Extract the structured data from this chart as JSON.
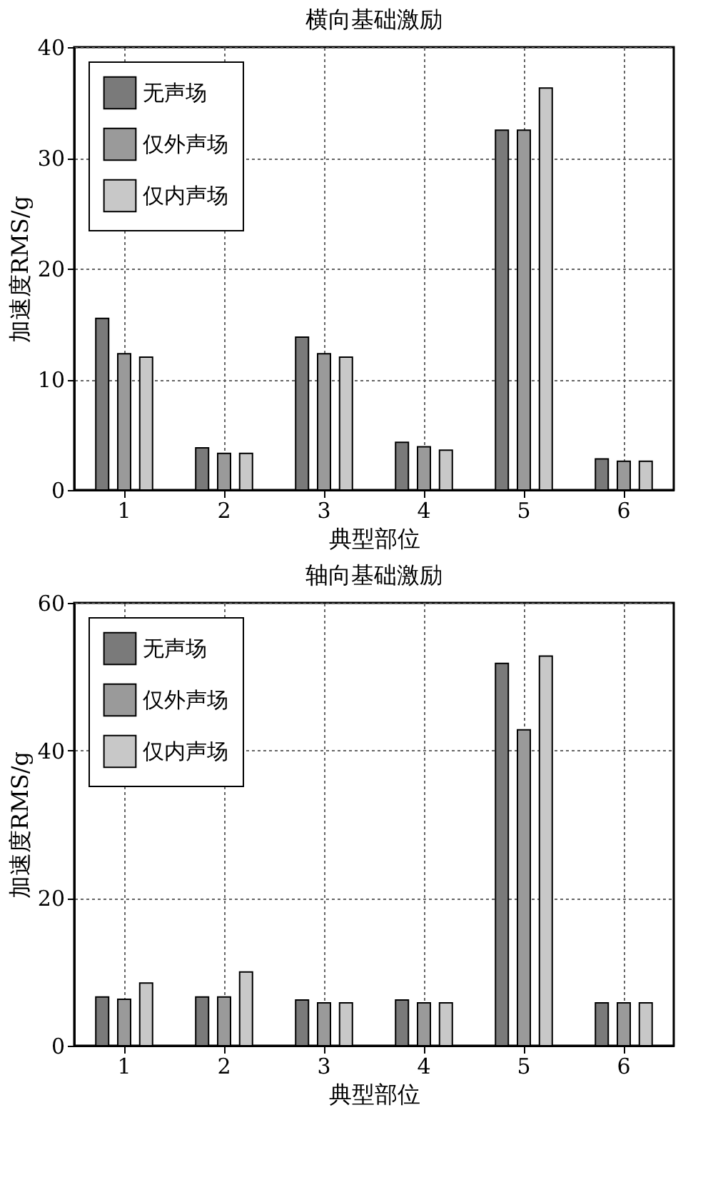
{
  "chart_data": [
    {
      "type": "bar",
      "title": "横向基础激励",
      "xlabel": "典型部位",
      "ylabel": "加速度RMS/g",
      "categories": [
        "1",
        "2",
        "3",
        "4",
        "5",
        "6"
      ],
      "series": [
        {
          "name": "无声场",
          "color": "#7a7a7a",
          "values": [
            15.5,
            3.8,
            13.8,
            4.3,
            32.5,
            2.8
          ]
        },
        {
          "name": "仅外声场",
          "color": "#9a9a9a",
          "values": [
            12.3,
            3.3,
            12.3,
            3.9,
            32.5,
            2.6
          ]
        },
        {
          "name": "仅内声场",
          "color": "#c8c8c8",
          "values": [
            12.0,
            3.3,
            12.0,
            3.6,
            36.3,
            2.6
          ]
        }
      ],
      "ylim": [
        0,
        40
      ],
      "yticks": [
        0,
        10,
        20,
        30,
        40
      ],
      "grid": true,
      "legend": "top left"
    },
    {
      "type": "bar",
      "title": "轴向基础激励",
      "xlabel": "典型部位",
      "ylabel": "加速度RMS/g",
      "categories": [
        "1",
        "2",
        "3",
        "4",
        "5",
        "6"
      ],
      "series": [
        {
          "name": "无声场",
          "color": "#7a7a7a",
          "values": [
            6.6,
            6.6,
            6.2,
            6.2,
            51.8,
            5.8
          ]
        },
        {
          "name": "仅外声场",
          "color": "#9a9a9a",
          "values": [
            6.3,
            6.6,
            5.8,
            5.8,
            42.8,
            5.8
          ]
        },
        {
          "name": "仅内声场",
          "color": "#c8c8c8",
          "values": [
            8.5,
            10,
            5.8,
            5.8,
            52.8,
            5.8
          ]
        }
      ],
      "ylim": [
        0,
        60
      ],
      "yticks": [
        0,
        20,
        40,
        60
      ],
      "grid": true,
      "legend": "top left"
    }
  ]
}
